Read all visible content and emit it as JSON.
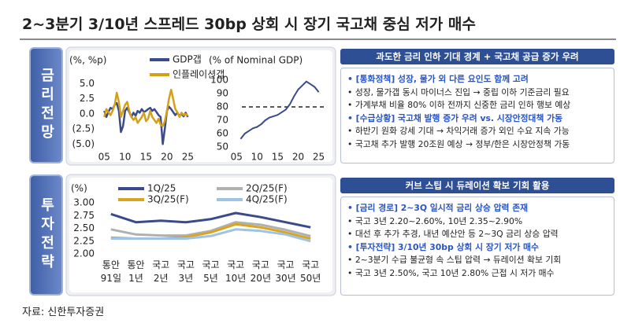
{
  "title": "2~3분기 3/10년 스프레드 30bp 상회 시 장기 국고채 중심 저가 매수",
  "side_labels": [
    "금리전망",
    "투자전략"
  ],
  "panels": [
    {
      "header": "과도한 금리 인하 기대 경계 + 국고채 공급 증가 우려",
      "groups": [
        {
          "heading": "[통화정책] 성장, 물가 외 다른 요인도 함께 고려",
          "bullets": [
            "성장, 물가갭 동시 마이너스 진입 → 중립 이하 기준금리 필요",
            "가계부채 비율 80% 이하 전까지 신중한 금리 인하 행보 예상"
          ]
        },
        {
          "heading": "[수급상황] 국고채 발행 증가 우려 vs. 시장안정대책 가동",
          "bullets": [
            "하반기 원화 강세 기대 → 차익거래 증가 외인 수요 지속 가능",
            "국고채 추가 발행 20조원 예상 → 정부/한은 시장안정책 가동"
          ]
        }
      ]
    },
    {
      "header": "커브 스팁 시 듀레이션 확보 기회 활용",
      "groups": [
        {
          "heading": "[금리 경로] 2~3Q 일시적 금리 상승 압력 존재",
          "bullets": [
            "국고 3년 2.20~2.60%, 10년 2.35~2.90%",
            "대선 후 추가 추경, 내년 예산안 등 2~3Q 금리 상승 압력"
          ]
        },
        {
          "heading": "[투자전략] 3/10년 30bp 상회 시 장기 저가 매수",
          "bullets": [
            "2~3분기 수급 불균형 속 스팁 압력 → 듀레이션 확보 기회",
            "국고 3년 2.50%, 국고 10년 2.80% 근접 시 저가 매수"
          ]
        }
      ]
    }
  ],
  "chart_data": [
    {
      "type": "line",
      "y_unit": "(%, %p)",
      "x": [
        5,
        5.5,
        6,
        6.5,
        7,
        7.5,
        8,
        8.5,
        9,
        9.5,
        10,
        10.5,
        11,
        11.5,
        12,
        12.5,
        13,
        13.5,
        14,
        14.5,
        15,
        15.5,
        16,
        16.5,
        17,
        17.5,
        18,
        18.5,
        19,
        19.5,
        20,
        20.5,
        21,
        21.5,
        22,
        22.5,
        23,
        23.5,
        24,
        24.5,
        25
      ],
      "series": [
        {
          "name": "GDP갭",
          "color": "#3b4a8c",
          "values": [
            0.5,
            -0.5,
            0.3,
            1.0,
            0.8,
            1.5,
            1.8,
            0.5,
            -3.0,
            -2.0,
            0.5,
            1.0,
            0.3,
            -0.5,
            0.2,
            -0.3,
            0.5,
            0.2,
            0.8,
            0.3,
            0.5,
            0.8,
            1.0,
            0.5,
            0.8,
            0.3,
            -0.2,
            -0.5,
            -5.0,
            -2.5,
            0.5,
            1.2,
            0.8,
            0.3,
            -0.2,
            0.2,
            -0.3,
            0.0,
            -0.4,
            0.2,
            -0.5
          ]
        },
        {
          "name": "인플레이션갭",
          "color": "#d4a017",
          "values": [
            -0.5,
            0.8,
            0.3,
            -0.2,
            0.5,
            1.5,
            3.5,
            2.0,
            -0.5,
            0.5,
            1.5,
            2.0,
            0.5,
            -0.5,
            -1.0,
            -0.5,
            -1.5,
            -1.0,
            -0.5,
            0.2,
            -1.2,
            -0.8,
            0.5,
            -0.5,
            -1.0,
            -1.5,
            -0.8,
            -1.8,
            -2.0,
            -1.2,
            0.5,
            2.5,
            4.0,
            2.5,
            0.8,
            0.3,
            -0.5,
            0.2,
            -0.2,
            0.0,
            -0.3
          ]
        }
      ],
      "xlim": [
        4,
        27
      ],
      "xticks": [
        {
          "value": 5,
          "label": "05"
        },
        10,
        15,
        20,
        25
      ],
      "ylim": [
        -6,
        6.5
      ],
      "yticks": [
        {
          "value": 5,
          "label": "5.0"
        },
        2.5,
        {
          "value": 0,
          "label": "0.0"
        },
        {
          "value": -2.5,
          "label": "(2.5)"
        },
        {
          "value": -5,
          "label": "(5.0)"
        }
      ]
    },
    {
      "type": "line",
      "y_unit": "(% of Nominal GDP)",
      "x": [
        6,
        7,
        8,
        9,
        10,
        11,
        12,
        13,
        14,
        15,
        16,
        17,
        18,
        19,
        20,
        21,
        22,
        23,
        24,
        25
      ],
      "values": [
        56,
        60,
        62,
        64,
        65,
        67,
        70,
        72,
        73,
        74,
        76,
        78,
        82,
        88,
        93,
        96,
        99,
        97,
        95,
        91
      ],
      "color": "#3b4a8c",
      "reference_line": 80,
      "xlim": [
        4,
        27
      ],
      "xticks": [
        {
          "value": 5,
          "label": "05"
        },
        10,
        15,
        20,
        25
      ],
      "ylim": [
        50,
        100
      ],
      "yticks": [
        50,
        60,
        70,
        80,
        90,
        100
      ]
    },
    {
      "type": "line",
      "y_unit": "(%)",
      "categories": [
        "통안 91일",
        "통안 1년",
        "국고 2년",
        "국고 3년",
        "국고 5년",
        "국고 10년",
        "국고 20년",
        "국고 30년",
        "국고 50년"
      ],
      "series": [
        {
          "name": "1Q/25",
          "color": "#3a4a8a",
          "values": [
            2.78,
            2.62,
            2.65,
            2.62,
            2.68,
            2.8,
            2.72,
            2.62,
            2.52
          ]
        },
        {
          "name": "2Q/25(F)",
          "color": "#b0b0b0",
          "values": [
            2.48,
            2.38,
            2.36,
            2.36,
            2.45,
            2.62,
            2.57,
            2.47,
            2.35
          ]
        },
        {
          "name": "3Q/25(F)",
          "color": "#d9a520",
          "values": [
            2.32,
            2.3,
            2.3,
            2.33,
            2.42,
            2.58,
            2.52,
            2.42,
            2.3
          ]
        },
        {
          "name": "4Q/25(F)",
          "color": "#9dc3e6",
          "values": [
            2.3,
            2.3,
            2.3,
            2.3,
            2.35,
            2.48,
            2.45,
            2.38,
            2.25
          ]
        }
      ],
      "ylim": [
        2,
        3
      ],
      "yticks": [
        {
          "value": 3,
          "label": "3.00"
        },
        {
          "value": 2.75,
          "label": "2.75"
        },
        {
          "value": 2.5,
          "label": "2.50"
        },
        {
          "value": 2.25,
          "label": "2.25"
        },
        {
          "value": 2,
          "label": "2.00"
        }
      ]
    }
  ],
  "source": "자료: 신한투자증권"
}
